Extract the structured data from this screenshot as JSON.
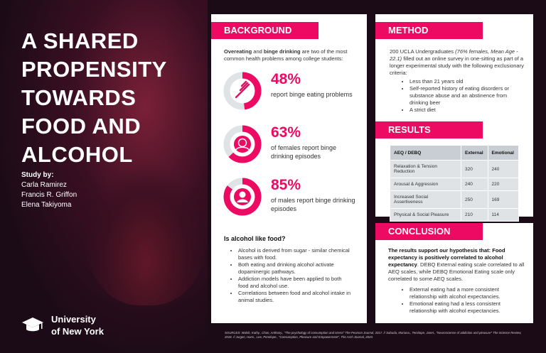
{
  "title": "A SHARED PROPENSITY TOWARDS FOOD AND ALCOHOL",
  "study": {
    "label": "Study by:",
    "authors": [
      "Carla Ramirez",
      "Francis R. Griffon",
      "Elena Takiyoma"
    ]
  },
  "university": {
    "line1": "University",
    "line2": "of New York",
    "icon": "graduation-cap-icon"
  },
  "accent": "#ec0a62",
  "background": {
    "heading": "BACKGROUND",
    "intro_bold1": "Overeating",
    "intro_mid": " and ",
    "intro_bold2": "binge drinking",
    "intro_rest": " are two of the most common health problems among college students:",
    "stats": [
      {
        "value": 48,
        "pct": "48%",
        "text": "report binge eating problems",
        "icon": "fork-icon"
      },
      {
        "value": 63,
        "pct": "63%",
        "text": "of females report binge drinking episodes",
        "icon": "female-user-icon"
      },
      {
        "value": 85,
        "pct": "85%",
        "text": "of males report binge drinking episodes",
        "icon": "male-user-icon"
      }
    ],
    "question": "Is alcohol like food?",
    "points": [
      "Alcohol is derived from sugar - similar chemical bases with food.",
      "Both eating and drinking alcohol activate dopaminergic pathways.",
      "Addiction models have been applied to both food and alcohol use.",
      "Correlations between food and alcohol intake in animal studies."
    ]
  },
  "method": {
    "heading": "METHOD",
    "text_a": "200 UCLA Undergraduates ",
    "text_italic": "(76% females, Mean Age - 22.1)",
    "text_b": " filled out an online survey in one-sitting as part of a longer experimental study with the following exclusionary criteria:",
    "criteria": [
      "Less than 21 years old",
      "Self-reported history of eating disorders or substance abuse and an abstinence from drinking beer",
      "A strict diet"
    ]
  },
  "results": {
    "heading": "RESULTS",
    "headers": [
      "AEQ / DEBQ",
      "External",
      "Emotional"
    ],
    "rows": [
      [
        "Relaxation & Tension Reduction",
        "320",
        "240"
      ],
      [
        "Arousal & Aggression",
        "240",
        "220"
      ],
      [
        "Increased Social Assertiveness",
        "250",
        "169"
      ],
      [
        "Physical & Social Pleasure",
        "210",
        "114"
      ]
    ]
  },
  "conclusion": {
    "heading": "CONCLUSION",
    "bold": "The results support our hypothesis that: Food expectancy is positively correlated to alcohol expectancy",
    "rest": ". DEBQ External eating scale correlated to all AEQ scales, while DEBQ Emotional Eating scale only correlated to some AEQ scales.",
    "points": [
      "External eating had a more consistent relationship with alcohol expectancies.",
      "Emotional eating had a less consistent relationship with alcohol expectancies."
    ]
  },
  "sources": "SOURCES: Walsh, Kathy., Chan, Anthony., \"The psychology of consumption and stress\" The Pearson Journal, 2017. // Sabuda, Mariana., Temitope, Janet., \"Neuroscience of addiction and pleasure\" The Science Review, 2018. // Jurgen, Hans., Lee, Penelope., \"Consumption, Pleasure and Empowerment\", The Arch Journal, 2020."
}
